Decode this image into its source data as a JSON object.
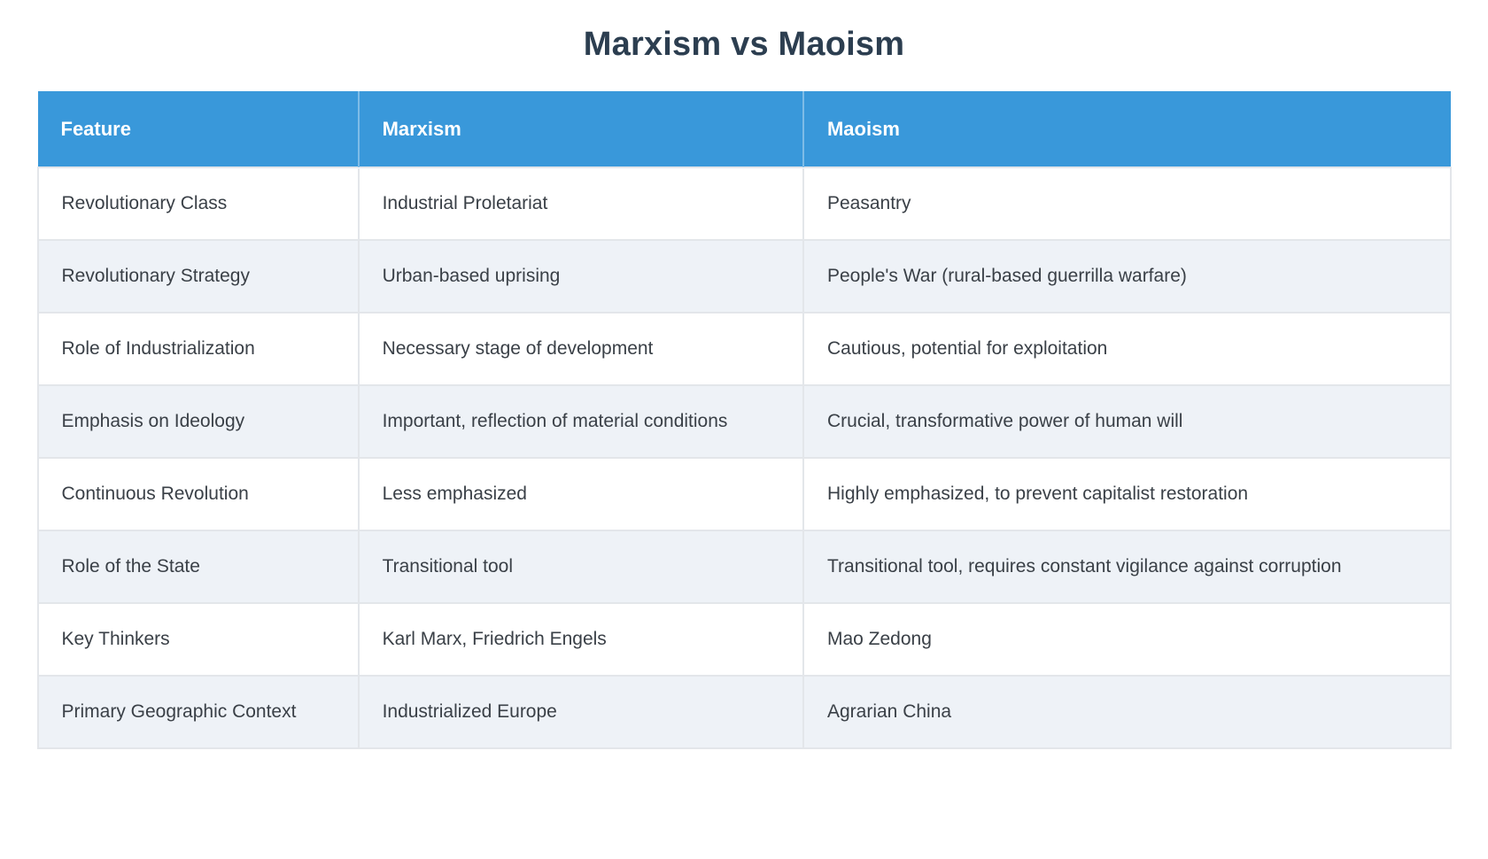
{
  "title": "Marxism vs Maoism",
  "table": {
    "headers": [
      "Feature",
      "Marxism",
      "Maoism"
    ],
    "rows": [
      [
        "Revolutionary Class",
        "Industrial Proletariat",
        "Peasantry"
      ],
      [
        "Revolutionary Strategy",
        "Urban-based uprising",
        "People's War (rural-based guerrilla warfare)"
      ],
      [
        "Role of Industrialization",
        "Necessary stage of development",
        "Cautious, potential for exploitation"
      ],
      [
        "Emphasis on Ideology",
        "Important, reflection of material conditions",
        "Crucial, transformative power of human will"
      ],
      [
        "Continuous Revolution",
        "Less emphasized",
        "Highly emphasized, to prevent capitalist restoration"
      ],
      [
        "Role of the State",
        "Transitional tool",
        "Transitional tool, requires constant vigilance against corruption"
      ],
      [
        "Key Thinkers",
        "Karl Marx, Friedrich Engels",
        "Mao Zedong"
      ],
      [
        "Primary Geographic Context",
        "Industrialized Europe",
        "Agrarian China"
      ]
    ]
  },
  "colors": {
    "header_bg": "#3998da",
    "header_text": "#ffffff",
    "row_bg": "#ffffff",
    "row_alt_bg": "#eef2f7",
    "border": "#e3e6ea",
    "title_text": "#2c3e50",
    "cell_text": "#3a4047"
  }
}
